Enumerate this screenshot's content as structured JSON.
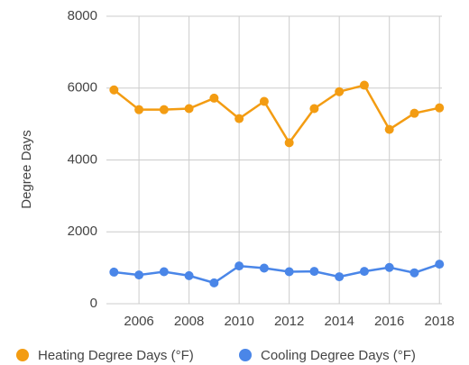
{
  "chart_data": {
    "type": "line",
    "y_label": "Degree Days",
    "x": [
      2005,
      2006,
      2007,
      2008,
      2009,
      2010,
      2011,
      2012,
      2013,
      2014,
      2015,
      2016,
      2017,
      2018
    ],
    "series": [
      {
        "name": "Heating Degree Days (°F)",
        "color": "#f39c12",
        "values": [
          5950,
          5400,
          5400,
          5430,
          5720,
          5150,
          5630,
          4480,
          5430,
          5900,
          6080,
          4850,
          5300,
          5450
        ]
      },
      {
        "name": "Cooling Degree Days (°F)",
        "color": "#4a86e8",
        "values": [
          880,
          800,
          890,
          780,
          580,
          1050,
          990,
          890,
          900,
          750,
          900,
          1010,
          860,
          1100
        ]
      }
    ],
    "xlim": [
      2004.7,
      2018.1
    ],
    "xticks": [
      2006,
      2008,
      2010,
      2012,
      2014,
      2016,
      2018
    ],
    "ylim": [
      0,
      8000
    ],
    "yticks": [
      0,
      2000,
      4000,
      6000,
      8000
    ],
    "grid": true,
    "legend": "bottom"
  }
}
